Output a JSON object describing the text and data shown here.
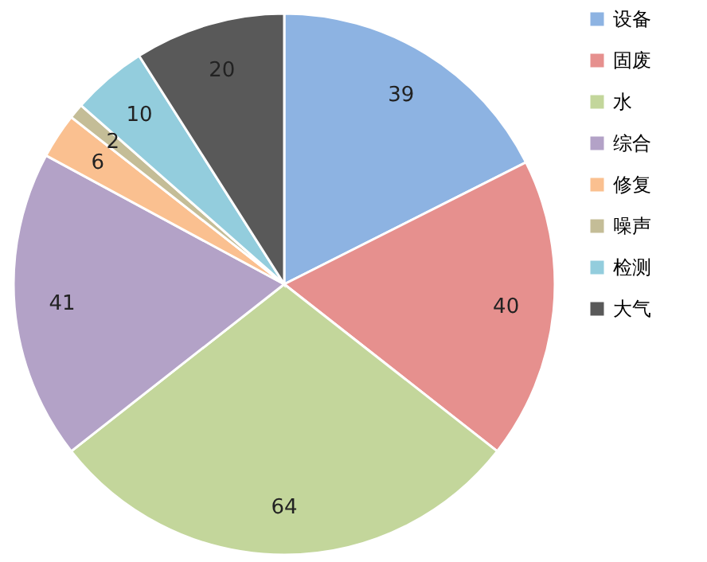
{
  "chart_data": {
    "type": "pie",
    "categories": [
      "设备",
      "固废",
      "水",
      "综合",
      "修复",
      "噪声",
      "检测",
      "大气"
    ],
    "values": [
      39,
      40,
      64,
      41,
      6,
      2,
      10,
      20
    ],
    "colors": [
      "#8db3e2",
      "#e6908e",
      "#c3d69b",
      "#b3a2c7",
      "#fac090",
      "#c4bd97",
      "#93cddd",
      "#595959"
    ],
    "data_labels": true,
    "legend": "right"
  }
}
